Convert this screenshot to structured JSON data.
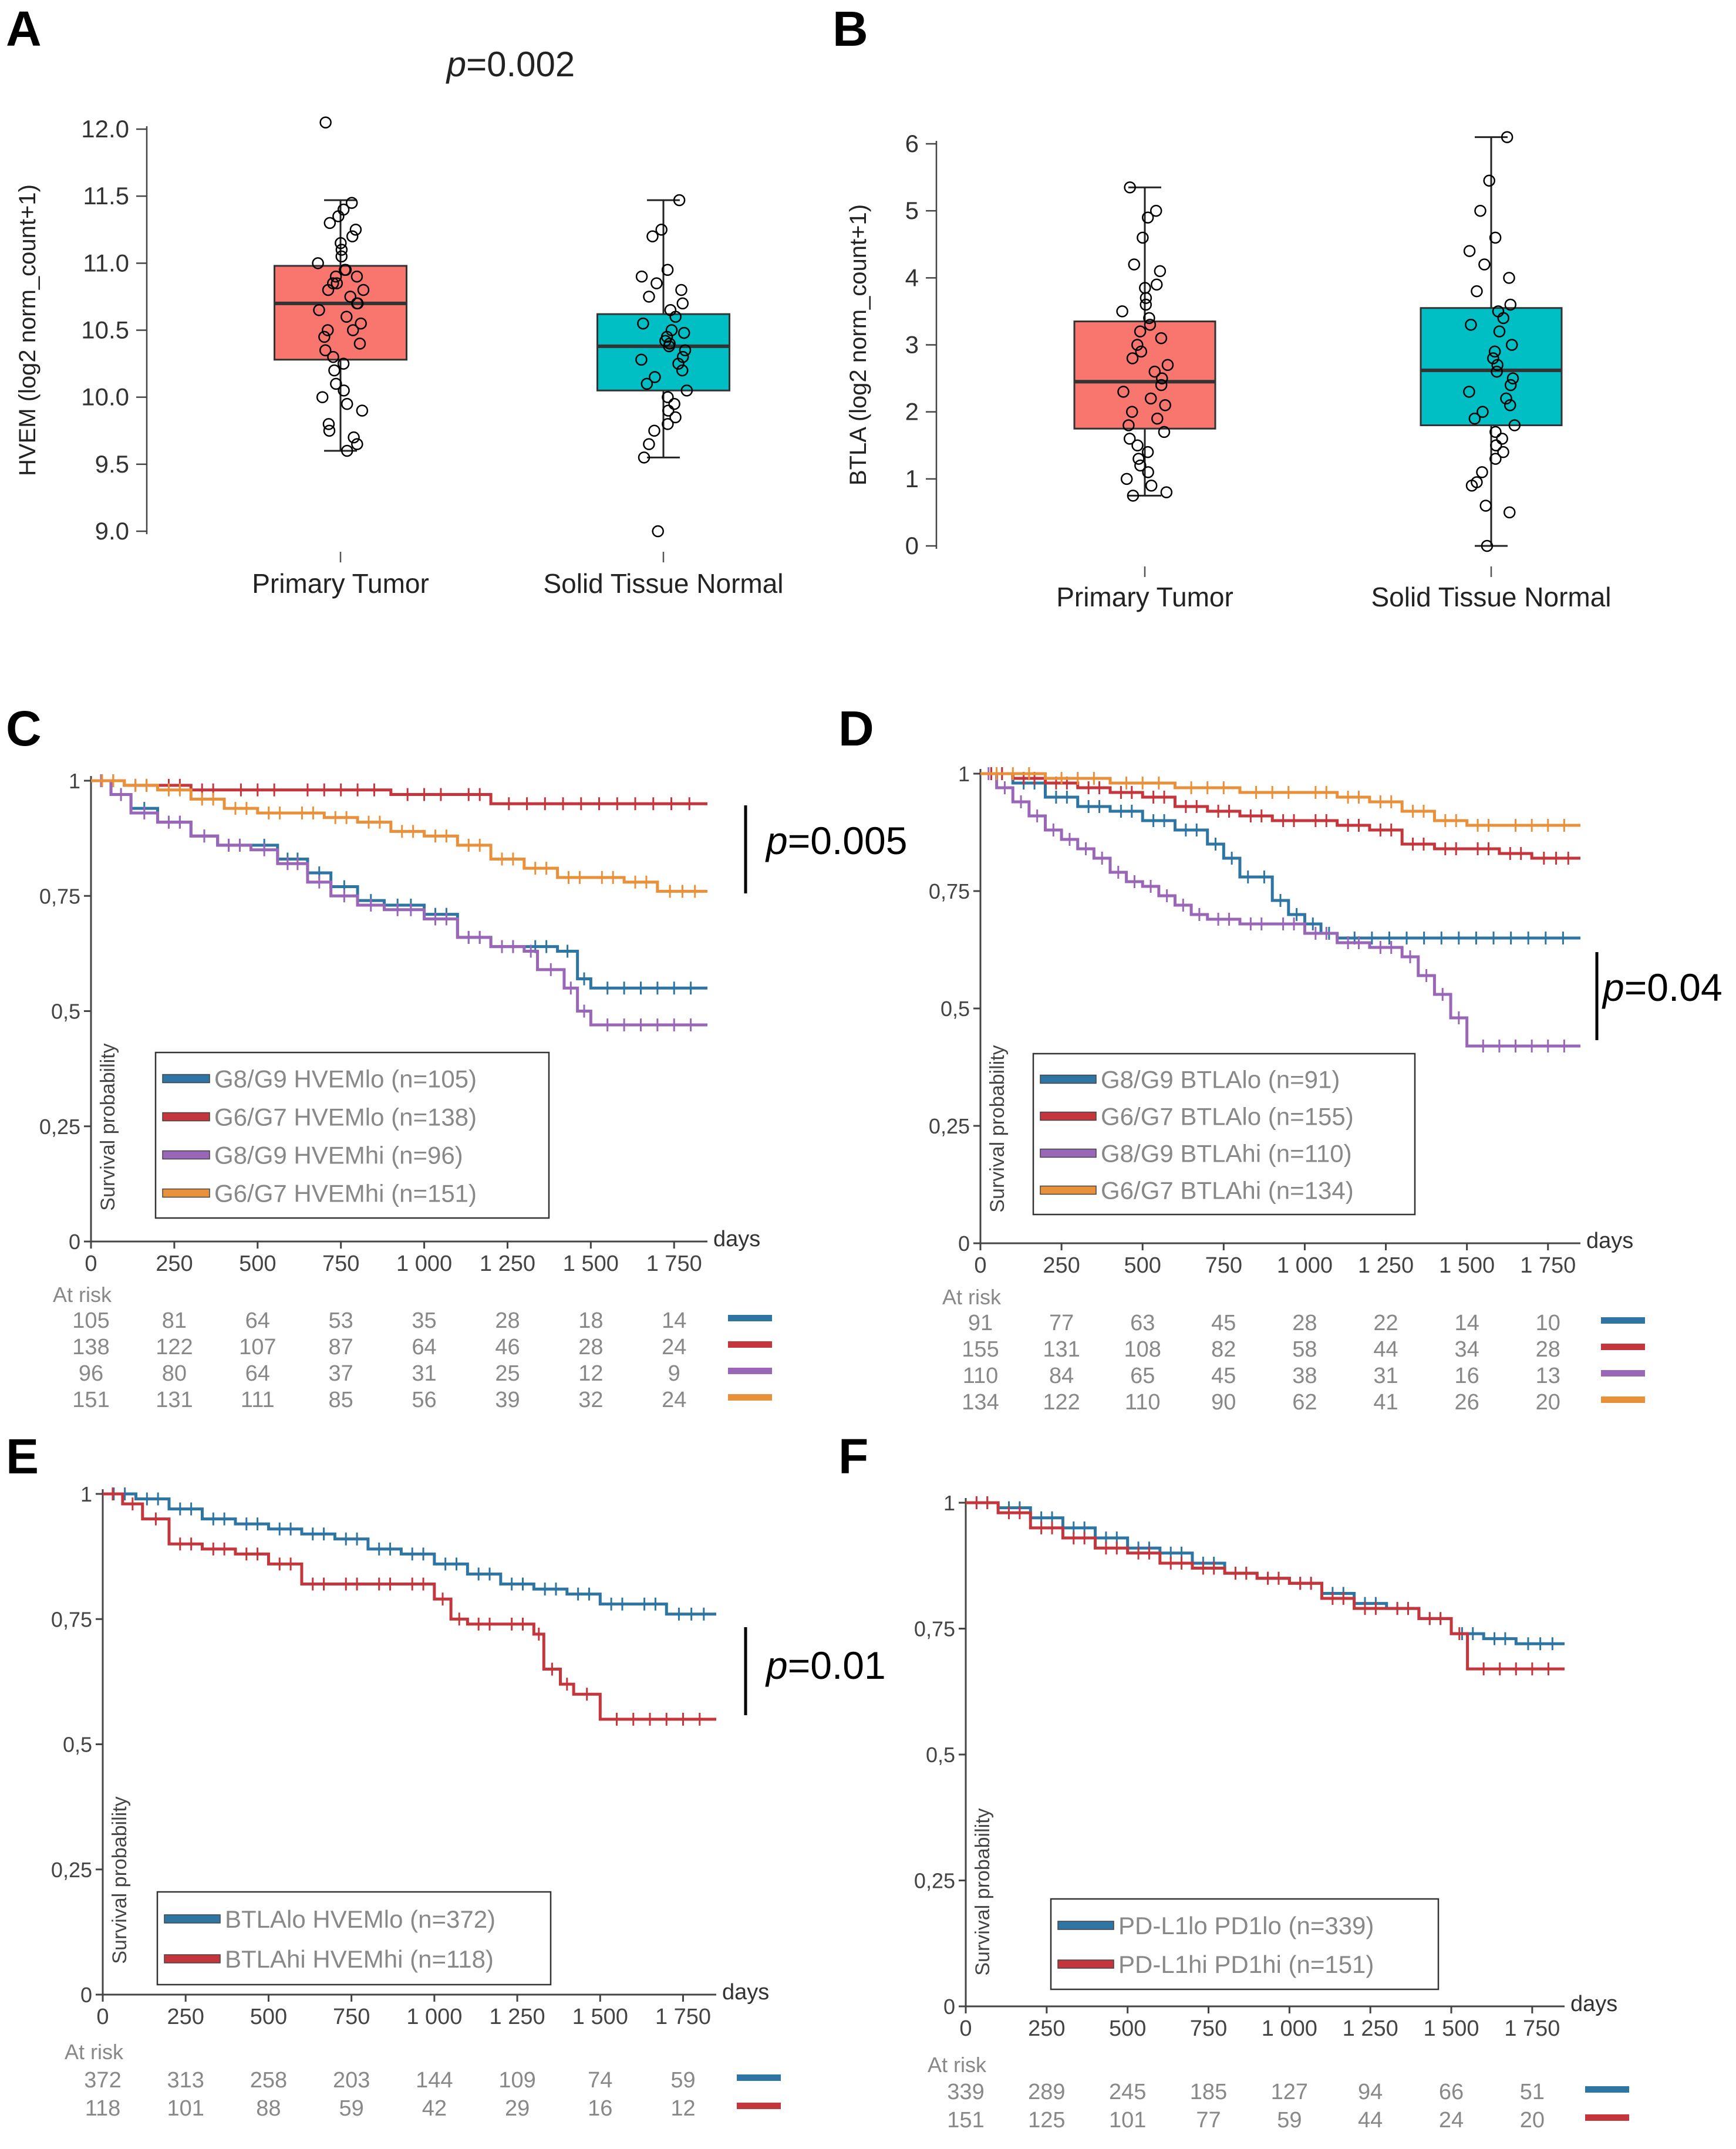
{
  "panel_letters": [
    "A",
    "B",
    "C",
    "D",
    "E",
    "F"
  ],
  "colors": {
    "tumor_box": "#f8766d",
    "normal_box": "#00bfc4",
    "blue": "#2e75a3",
    "red": "#c4363b",
    "purple": "#9966b8",
    "orange": "#e8913a",
    "axis": "#444444",
    "tick_text": "#444444",
    "legend_text": "#888888",
    "risk_text": "#888888"
  },
  "chart_data": [
    {
      "id": "A",
      "type": "box",
      "title": "p=0.002",
      "p_label": "p",
      "p_value": "=0.002",
      "ylabel": "HVEM (log2 norm_count+1)",
      "ylim": [
        9.0,
        12.0
      ],
      "yticks": [
        "9.0",
        "9.5",
        "10.0",
        "10.5",
        "11.0",
        "11.5",
        "12.0"
      ],
      "categories": [
        "Primary Tumor",
        "Solid Tissue Normal"
      ],
      "boxes": [
        {
          "name": "Primary Tumor",
          "q1": 10.28,
          "median": 10.7,
          "q3": 10.98,
          "whisker_low": 9.6,
          "whisker_high": 11.47,
          "points": [
            12.05,
            11.45,
            11.4,
            11.35,
            11.3,
            11.25,
            11.2,
            11.15,
            11.1,
            11.05,
            11.0,
            10.95,
            10.95,
            10.9,
            10.9,
            10.85,
            10.85,
            10.8,
            10.8,
            10.75,
            10.7,
            10.7,
            10.65,
            10.6,
            10.55,
            10.5,
            10.5,
            10.45,
            10.4,
            10.35,
            10.3,
            10.25,
            10.2,
            10.1,
            10.05,
            10.0,
            9.95,
            9.9,
            9.8,
            9.75,
            9.7,
            9.65,
            9.6
          ]
        },
        {
          "name": "Solid Tissue Normal",
          "q1": 10.05,
          "median": 10.38,
          "q3": 10.62,
          "whisker_low": 9.55,
          "whisker_high": 11.47,
          "points": [
            11.47,
            11.25,
            11.2,
            10.95,
            10.9,
            10.85,
            10.8,
            10.75,
            10.7,
            10.65,
            10.6,
            10.55,
            10.5,
            10.48,
            10.45,
            10.42,
            10.4,
            10.38,
            10.35,
            10.3,
            10.28,
            10.25,
            10.2,
            10.15,
            10.1,
            10.05,
            10.0,
            9.95,
            9.9,
            9.85,
            9.8,
            9.75,
            9.65,
            9.55,
            9.0
          ]
        }
      ]
    },
    {
      "id": "B",
      "type": "box",
      "ylabel": "BTLA (log2 norm_count+1)",
      "ylim": [
        0,
        6
      ],
      "yticks": [
        "0",
        "1",
        "2",
        "3",
        "4",
        "5",
        "6"
      ],
      "categories": [
        "Primary Tumor",
        "Solid Tissue Normal"
      ],
      "boxes": [
        {
          "name": "Primary Tumor",
          "q1": 1.75,
          "median": 2.45,
          "q3": 3.35,
          "whisker_low": 0.75,
          "whisker_high": 5.35,
          "points": [
            5.35,
            5.0,
            4.9,
            4.6,
            4.2,
            4.1,
            3.9,
            3.85,
            3.7,
            3.6,
            3.5,
            3.4,
            3.3,
            3.2,
            3.1,
            3.0,
            2.9,
            2.8,
            2.7,
            2.6,
            2.5,
            2.4,
            2.3,
            2.2,
            2.1,
            2.0,
            1.9,
            1.8,
            1.7,
            1.6,
            1.5,
            1.4,
            1.3,
            1.2,
            1.1,
            1.0,
            0.9,
            0.8,
            0.75
          ]
        },
        {
          "name": "Solid Tissue Normal",
          "q1": 1.8,
          "median": 2.62,
          "q3": 3.55,
          "whisker_low": 0.0,
          "whisker_high": 6.1,
          "points": [
            6.1,
            5.45,
            5.0,
            4.6,
            4.4,
            4.2,
            4.0,
            3.8,
            3.6,
            3.5,
            3.4,
            3.3,
            3.2,
            3.0,
            2.9,
            2.8,
            2.7,
            2.6,
            2.5,
            2.4,
            2.3,
            2.2,
            2.1,
            2.0,
            1.9,
            1.8,
            1.7,
            1.6,
            1.5,
            1.4,
            1.3,
            1.1,
            0.95,
            0.9,
            0.6,
            0.5,
            0.0
          ]
        }
      ]
    },
    {
      "id": "C",
      "type": "line",
      "subtype": "kaplan-meier",
      "ylabel": "Survival probability",
      "xlabel": "days",
      "xlim": [
        0,
        1850
      ],
      "ylim": [
        0,
        1
      ],
      "xticks": [
        "0",
        "250",
        "500",
        "750",
        "1 000",
        "1 250",
        "1 500",
        "1 750"
      ],
      "yticks": [
        "0",
        "0,25",
        "0,5",
        "0,75",
        "1"
      ],
      "p_label": "p",
      "p_value": "=0.005",
      "series": [
        {
          "name": "G8/G9 HVEMlo (n=105)",
          "color": "blue",
          "x": [
            0,
            60,
            120,
            200,
            300,
            380,
            480,
            560,
            650,
            720,
            800,
            880,
            1000,
            1100,
            1200,
            1300,
            1400,
            1460,
            1500,
            1850
          ],
          "y": [
            1,
            0.97,
            0.94,
            0.91,
            0.88,
            0.86,
            0.86,
            0.83,
            0.8,
            0.77,
            0.74,
            0.73,
            0.71,
            0.66,
            0.64,
            0.64,
            0.63,
            0.57,
            0.55,
            0.55
          ]
        },
        {
          "name": "G6/G7 HVEMlo (n=138)",
          "color": "red",
          "x": [
            0,
            100,
            200,
            300,
            400,
            600,
            900,
            1100,
            1200,
            1850
          ],
          "y": [
            1,
            0.99,
            0.99,
            0.98,
            0.98,
            0.98,
            0.97,
            0.97,
            0.95,
            0.95
          ]
        },
        {
          "name": "G8/G9 HVEMhi (n=96)",
          "color": "purple",
          "x": [
            0,
            60,
            120,
            200,
            300,
            380,
            480,
            560,
            650,
            720,
            800,
            880,
            1000,
            1100,
            1200,
            1300,
            1340,
            1420,
            1460,
            1500,
            1850
          ],
          "y": [
            1,
            0.97,
            0.93,
            0.91,
            0.88,
            0.86,
            0.85,
            0.82,
            0.78,
            0.75,
            0.73,
            0.72,
            0.7,
            0.66,
            0.64,
            0.63,
            0.59,
            0.55,
            0.5,
            0.47,
            0.47
          ]
        },
        {
          "name": "G6/G7 HVEMhi (n=151)",
          "color": "orange",
          "x": [
            0,
            100,
            200,
            300,
            400,
            500,
            600,
            700,
            800,
            900,
            1000,
            1100,
            1200,
            1300,
            1400,
            1500,
            1600,
            1700,
            1850
          ],
          "y": [
            1,
            0.99,
            0.98,
            0.96,
            0.94,
            0.93,
            0.93,
            0.92,
            0.91,
            0.89,
            0.88,
            0.86,
            0.83,
            0.81,
            0.79,
            0.79,
            0.78,
            0.76,
            0.76
          ]
        }
      ],
      "at_risk_label": "At risk",
      "at_risk": [
        [
          "105",
          "81",
          "64",
          "53",
          "35",
          "28",
          "18",
          "14"
        ],
        [
          "138",
          "122",
          "107",
          "87",
          "64",
          "46",
          "28",
          "24"
        ],
        [
          "96",
          "80",
          "64",
          "37",
          "31",
          "25",
          "12",
          "9"
        ],
        [
          "151",
          "131",
          "111",
          "85",
          "56",
          "39",
          "32",
          "24"
        ]
      ]
    },
    {
      "id": "D",
      "type": "line",
      "subtype": "kaplan-meier",
      "ylabel": "Survival probability",
      "xlabel": "days",
      "xlim": [
        0,
        1850
      ],
      "ylim": [
        0,
        1
      ],
      "xticks": [
        "0",
        "250",
        "500",
        "750",
        "1 000",
        "1 250",
        "1 500",
        "1 750"
      ],
      "yticks": [
        "0",
        "0,25",
        "0,5",
        "0,75",
        "1"
      ],
      "p_label": "p",
      "p_value": "=0.04",
      "series": [
        {
          "name": "G8/G9 BTLAlo (n=91)",
          "color": "blue",
          "x": [
            0,
            100,
            200,
            300,
            400,
            500,
            600,
            700,
            750,
            800,
            850,
            900,
            950,
            1000,
            1050,
            1100,
            1850
          ],
          "y": [
            1,
            0.98,
            0.95,
            0.93,
            0.92,
            0.9,
            0.88,
            0.85,
            0.82,
            0.78,
            0.78,
            0.73,
            0.7,
            0.68,
            0.66,
            0.65,
            0.65
          ]
        },
        {
          "name": "G6/G7 BTLAlo (n=155)",
          "color": "red",
          "x": [
            0,
            100,
            200,
            300,
            400,
            500,
            600,
            700,
            800,
            900,
            1000,
            1100,
            1200,
            1300,
            1400,
            1500,
            1600,
            1700,
            1850
          ],
          "y": [
            1,
            0.99,
            0.98,
            0.97,
            0.96,
            0.95,
            0.93,
            0.92,
            0.91,
            0.9,
            0.9,
            0.89,
            0.88,
            0.85,
            0.84,
            0.84,
            0.83,
            0.82,
            0.82
          ]
        },
        {
          "name": "G8/G9 BTLAhi (n=110)",
          "color": "purple",
          "x": [
            0,
            50,
            100,
            150,
            200,
            250,
            300,
            350,
            400,
            450,
            500,
            550,
            600,
            650,
            700,
            800,
            900,
            1000,
            1100,
            1200,
            1300,
            1350,
            1400,
            1450,
            1500,
            1850
          ],
          "y": [
            1,
            0.97,
            0.94,
            0.91,
            0.88,
            0.86,
            0.84,
            0.82,
            0.79,
            0.77,
            0.76,
            0.74,
            0.72,
            0.7,
            0.69,
            0.68,
            0.68,
            0.66,
            0.64,
            0.63,
            0.61,
            0.57,
            0.53,
            0.48,
            0.42,
            0.42
          ]
        },
        {
          "name": "G6/G7 BTLAhi (n=134)",
          "color": "orange",
          "x": [
            0,
            200,
            400,
            600,
            800,
            1000,
            1100,
            1200,
            1300,
            1400,
            1500,
            1600,
            1850
          ],
          "y": [
            1,
            0.99,
            0.98,
            0.97,
            0.96,
            0.96,
            0.95,
            0.94,
            0.92,
            0.9,
            0.89,
            0.89,
            0.89
          ]
        }
      ],
      "at_risk_label": "At risk",
      "at_risk": [
        [
          "91",
          "77",
          "63",
          "45",
          "28",
          "22",
          "14",
          "10"
        ],
        [
          "155",
          "131",
          "108",
          "82",
          "58",
          "44",
          "34",
          "28"
        ],
        [
          "110",
          "84",
          "65",
          "45",
          "38",
          "31",
          "16",
          "13"
        ],
        [
          "134",
          "122",
          "110",
          "90",
          "62",
          "41",
          "26",
          "20"
        ]
      ]
    },
    {
      "id": "E",
      "type": "line",
      "subtype": "kaplan-meier",
      "ylabel": "Survival probability",
      "xlabel": "days",
      "xlim": [
        0,
        1850
      ],
      "ylim": [
        0,
        1
      ],
      "xticks": [
        "0",
        "250",
        "500",
        "750",
        "1 000",
        "1 250",
        "1 500",
        "1 750"
      ],
      "yticks": [
        "0",
        "0,25",
        "0,5",
        "0,75",
        "1"
      ],
      "p_label": "p",
      "p_value": "=0.01",
      "series": [
        {
          "name": "BTLAlo HVEMlo (n=372)",
          "color": "blue",
          "x": [
            0,
            100,
            200,
            300,
            400,
            500,
            600,
            700,
            800,
            900,
            1000,
            1100,
            1200,
            1300,
            1400,
            1500,
            1600,
            1700,
            1850
          ],
          "y": [
            1,
            0.99,
            0.97,
            0.95,
            0.94,
            0.93,
            0.92,
            0.91,
            0.89,
            0.88,
            0.86,
            0.84,
            0.82,
            0.81,
            0.8,
            0.78,
            0.78,
            0.76,
            0.76
          ]
        },
        {
          "name": "BTLAhi HVEMhi (n=118)",
          "color": "red",
          "x": [
            0,
            60,
            120,
            200,
            300,
            400,
            500,
            600,
            700,
            800,
            900,
            1000,
            1050,
            1100,
            1200,
            1300,
            1330,
            1380,
            1420,
            1500,
            1850
          ],
          "y": [
            1,
            0.98,
            0.95,
            0.9,
            0.89,
            0.88,
            0.86,
            0.82,
            0.82,
            0.82,
            0.82,
            0.79,
            0.75,
            0.74,
            0.74,
            0.72,
            0.65,
            0.62,
            0.6,
            0.55,
            0.55
          ]
        }
      ],
      "at_risk_label": "At risk",
      "at_risk": [
        [
          "372",
          "313",
          "258",
          "203",
          "144",
          "109",
          "74",
          "59"
        ],
        [
          "118",
          "101",
          "88",
          "59",
          "42",
          "29",
          "16",
          "12"
        ]
      ]
    },
    {
      "id": "F",
      "type": "line",
      "subtype": "kaplan-meier",
      "ylabel": "Survival probability",
      "xlabel": "days",
      "xlim": [
        0,
        1850
      ],
      "ylim": [
        0,
        1
      ],
      "xticks": [
        "0",
        "250",
        "500",
        "750",
        "1 000",
        "1 250",
        "1 500",
        "1 750"
      ],
      "yticks": [
        "0",
        "0,25",
        "0,5",
        "0,75",
        "1"
      ],
      "series": [
        {
          "name": "PD-L1lo PD1lo (n=339)",
          "color": "blue",
          "x": [
            0,
            100,
            200,
            300,
            400,
            500,
            600,
            700,
            800,
            900,
            1000,
            1100,
            1200,
            1300,
            1400,
            1500,
            1600,
            1700,
            1850
          ],
          "y": [
            1,
            0.99,
            0.97,
            0.95,
            0.93,
            0.91,
            0.9,
            0.88,
            0.86,
            0.85,
            0.84,
            0.82,
            0.8,
            0.79,
            0.77,
            0.74,
            0.73,
            0.72,
            0.72
          ]
        },
        {
          "name": "PD-L1hi PD1hi (n=151)",
          "color": "red",
          "x": [
            0,
            100,
            200,
            300,
            400,
            500,
            600,
            700,
            800,
            900,
            1000,
            1100,
            1200,
            1300,
            1400,
            1500,
            1550,
            1850
          ],
          "y": [
            1,
            0.98,
            0.95,
            0.93,
            0.91,
            0.9,
            0.88,
            0.87,
            0.86,
            0.85,
            0.84,
            0.81,
            0.79,
            0.79,
            0.77,
            0.74,
            0.67,
            0.67
          ]
        }
      ],
      "at_risk_label": "At risk",
      "at_risk": [
        [
          "339",
          "289",
          "245",
          "185",
          "127",
          "94",
          "66",
          "51"
        ],
        [
          "151",
          "125",
          "101",
          "77",
          "59",
          "44",
          "24",
          "20"
        ]
      ]
    }
  ]
}
